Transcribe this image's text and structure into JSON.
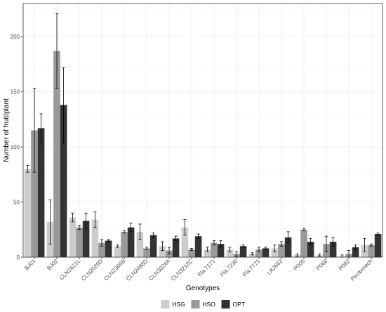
{
  "chart_data": {
    "type": "bar",
    "xlabel": "Genotypes",
    "ylabel": "Number of fruit/plant",
    "ylim": [
      0,
      230
    ],
    "yticks": [
      0,
      50,
      100,
      150,
      200
    ],
    "grid": true,
    "legend_position": "bottom",
    "categories": [
      "BJ01",
      "BJ02",
      "CLN1621L",
      "CLN2026D",
      "CLN2366B",
      "CLN2498D",
      "CLN3024A",
      "CLN3212C",
      "Fla.7171",
      "Fla.7236",
      "Fla.7771",
      "LA2662",
      "P005",
      "P068",
      "P082",
      "Pectomech"
    ],
    "series": [
      {
        "name": "HSG",
        "color": "#cccccc",
        "values": [
          80,
          32,
          36,
          34,
          10,
          23,
          10,
          27,
          7,
          7,
          3,
          8,
          2,
          2,
          1,
          11
        ],
        "errors": [
          3,
          20,
          4,
          7,
          1,
          7,
          4,
          7,
          2,
          2,
          1,
          3,
          1,
          1,
          1,
          6
        ]
      },
      {
        "name": "HSO",
        "color": "#999999",
        "values": [
          115,
          187,
          27,
          13,
          23,
          8,
          6,
          7,
          13,
          3,
          7,
          12,
          25,
          12,
          3,
          11
        ]
      },
      {
        "name": "OPT",
        "color": "#333333",
        "values": [
          117,
          138,
          33,
          15,
          27,
          20,
          17,
          19,
          12,
          10,
          8,
          18,
          14,
          14,
          9,
          21
        ]
      }
    ],
    "errors": {
      "HSG": [
        3,
        20,
        4,
        7,
        1,
        7,
        4,
        7,
        2,
        2,
        1,
        3,
        1,
        1,
        1,
        6
      ],
      "HSO": [
        38,
        34,
        2,
        3,
        1,
        1,
        3,
        1,
        2,
        2,
        2,
        2,
        1,
        7,
        3,
        1
      ],
      "OPT": [
        13,
        34,
        7,
        1,
        4,
        2,
        2,
        2,
        3,
        1,
        1,
        5,
        3,
        4,
        2,
        1
      ]
    }
  }
}
